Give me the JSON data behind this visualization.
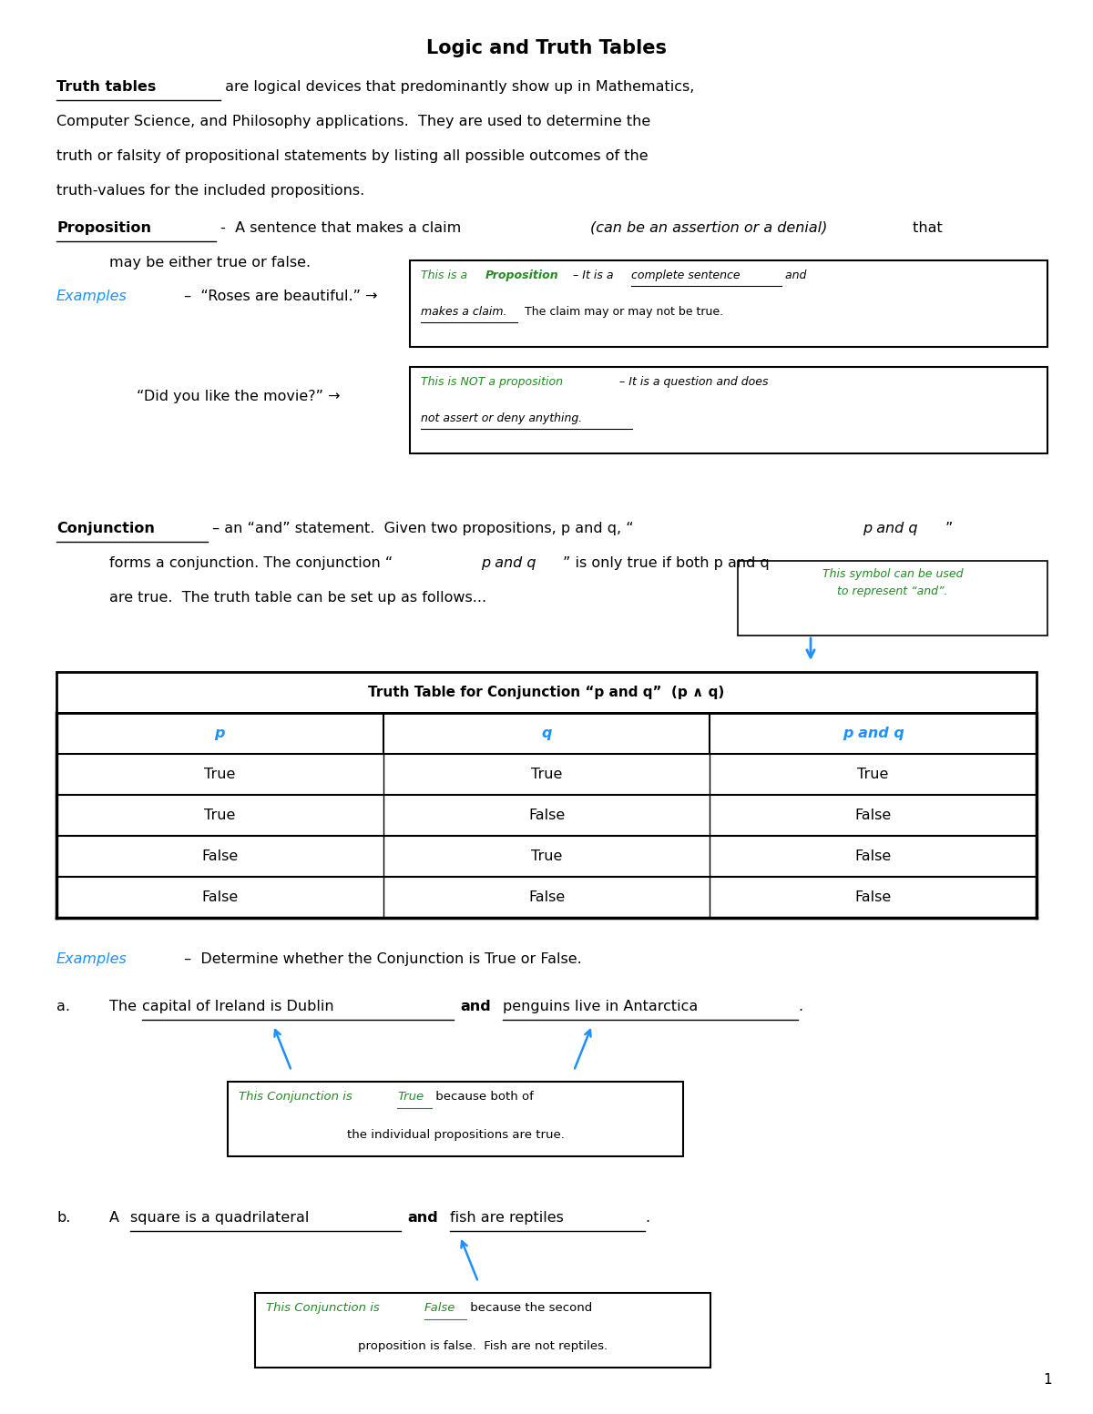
{
  "title": "Logic and Truth Tables",
  "bg_color": "#ffffff",
  "text_color": "#000000",
  "blue_color": "#1e90ff",
  "green_color": "#228B22",
  "page_number": "1",
  "sections": {
    "table_title": "Truth Table for Conjunction “p and q”  (p ∧ q)",
    "table_headers": [
      "p",
      "q",
      "p and q"
    ],
    "table_rows": [
      [
        "True",
        "True",
        "True"
      ],
      [
        "True",
        "False",
        "False"
      ],
      [
        "False",
        "True",
        "False"
      ],
      [
        "False",
        "False",
        "False"
      ]
    ]
  }
}
